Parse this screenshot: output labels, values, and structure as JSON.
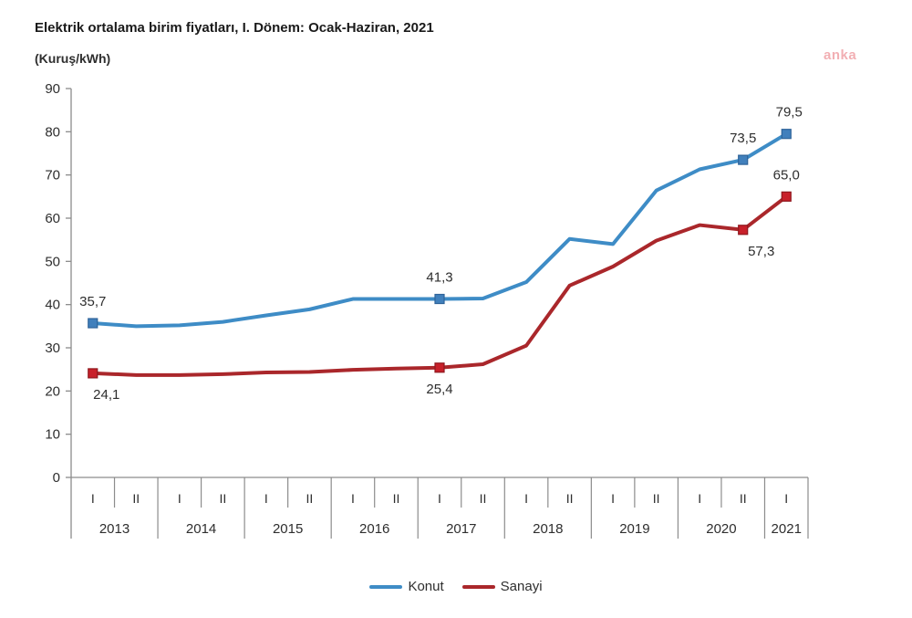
{
  "title": "Elektrik ortalama birim fiyatları, I. Dönem: Ocak-Haziran, 2021",
  "unit_label": "(Kuruş/kWh)",
  "watermark": "anka",
  "legend": [
    {
      "label": "Konut",
      "color": "#3e8cc6"
    },
    {
      "label": "Sanayi",
      "color": "#aa272b"
    }
  ],
  "chart_data": {
    "type": "line",
    "title": "Elektrik ortalama birim fiyatları, I. Dönem: Ocak-Haziran, 2021",
    "ylabel": "(Kuruş/kWh)",
    "ylim": [
      0,
      90
    ],
    "yticks": [
      0,
      10,
      20,
      30,
      40,
      50,
      60,
      70,
      80,
      90
    ],
    "grid": false,
    "legend_position": "bottom",
    "categories": [
      "2013-I",
      "2013-II",
      "2014-I",
      "2014-II",
      "2015-I",
      "2015-II",
      "2016-I",
      "2016-II",
      "2017-I",
      "2017-II",
      "2018-I",
      "2018-II",
      "2019-I",
      "2019-II",
      "2020-I",
      "2020-II",
      "2021-I"
    ],
    "x_axis_years": [
      {
        "label": "2013",
        "periods": [
          "I",
          "II"
        ]
      },
      {
        "label": "2014",
        "periods": [
          "I",
          "II"
        ]
      },
      {
        "label": "2015",
        "periods": [
          "I",
          "II"
        ]
      },
      {
        "label": "2016",
        "periods": [
          "I",
          "II"
        ]
      },
      {
        "label": "2017",
        "periods": [
          "I",
          "II"
        ]
      },
      {
        "label": "2018",
        "periods": [
          "I",
          "II"
        ]
      },
      {
        "label": "2019",
        "periods": [
          "I",
          "II"
        ]
      },
      {
        "label": "2020",
        "periods": [
          "I",
          "II"
        ]
      },
      {
        "label": "2021",
        "periods": [
          "I"
        ]
      }
    ],
    "series": [
      {
        "name": "Konut",
        "color": "#3e8cc6",
        "marker_fill": "#4180bc",
        "marker_stroke": "#2e6399",
        "values": [
          35.7,
          35.0,
          35.2,
          36.0,
          37.5,
          38.9,
          41.3,
          41.3,
          41.3,
          41.4,
          45.2,
          55.2,
          54.0,
          66.4,
          71.3,
          73.5,
          79.5
        ]
      },
      {
        "name": "Sanayi",
        "color": "#aa272b",
        "marker_fill": "#c8202a",
        "marker_stroke": "#8f181e",
        "values": [
          24.1,
          23.7,
          23.7,
          23.9,
          24.3,
          24.4,
          24.9,
          25.2,
          25.4,
          26.2,
          30.5,
          44.4,
          48.8,
          54.8,
          58.4,
          57.3,
          65.0
        ]
      }
    ],
    "annotations": [
      {
        "series": 0,
        "index": 0,
        "text": "35,7",
        "place": "above",
        "dx": 0
      },
      {
        "series": 0,
        "index": 8,
        "text": "41,3",
        "place": "above",
        "dx": 0
      },
      {
        "series": 0,
        "index": 15,
        "text": "73,5",
        "place": "above",
        "dx": 0
      },
      {
        "series": 0,
        "index": 16,
        "text": "79,5",
        "place": "above",
        "dx": 3
      },
      {
        "series": 1,
        "index": 0,
        "text": "24,1",
        "place": "below",
        "dx": 15
      },
      {
        "series": 1,
        "index": 8,
        "text": "25,4",
        "place": "below",
        "dx": 0
      },
      {
        "series": 1,
        "index": 15,
        "text": "57,3",
        "place": "below",
        "dx": 20
      },
      {
        "series": 1,
        "index": 16,
        "text": "65,0",
        "place": "above",
        "dx": 0
      }
    ]
  }
}
